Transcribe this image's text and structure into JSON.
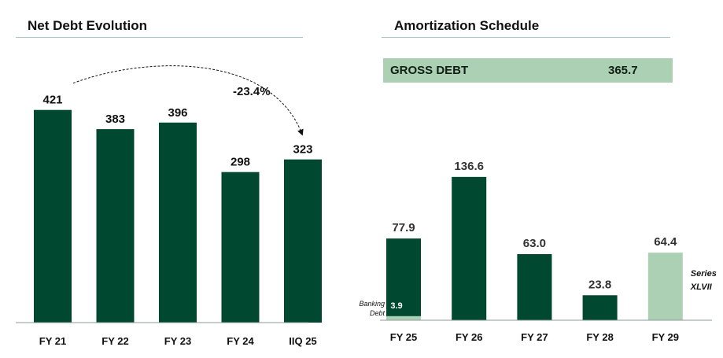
{
  "colors": {
    "dark_green": "#00482f",
    "light_green": "#acd0b4",
    "rule": "#a8c6c2"
  },
  "chart_data": [
    {
      "type": "bar",
      "title": "Net Debt Evolution",
      "categories": [
        "FY 21",
        "FY 22",
        "FY 23",
        "FY 24",
        "IIQ 25"
      ],
      "values": [
        421,
        383,
        396,
        298,
        323
      ],
      "value_labels": [
        "421",
        "383",
        "396",
        "298",
        "323"
      ],
      "ylim": [
        0,
        500
      ],
      "annotation": {
        "text": "-23.4%",
        "from_category": "FY 21",
        "to_category": "IIQ 25"
      }
    },
    {
      "type": "bar",
      "title": "Amortization Schedule",
      "categories": [
        "FY 25",
        "FY 26",
        "FY 27",
        "FY 28",
        "FY 29"
      ],
      "values": [
        77.9,
        136.6,
        63.0,
        23.8,
        64.4
      ],
      "value_labels": [
        "77.9",
        "136.6",
        "63.0",
        "23.8",
        "64.4"
      ],
      "highlight_category": "FY 29",
      "ylim": [
        0,
        300
      ],
      "gross_debt": {
        "label": "GROSS DEBT",
        "value": "365.7"
      },
      "banking_debt": {
        "category": "FY 25",
        "value": 3.9,
        "value_label": "3.9",
        "label_line1": "Banking",
        "label_line2": "Debt"
      },
      "series_label": {
        "line1": "Series",
        "line2": "XLVII"
      }
    }
  ]
}
